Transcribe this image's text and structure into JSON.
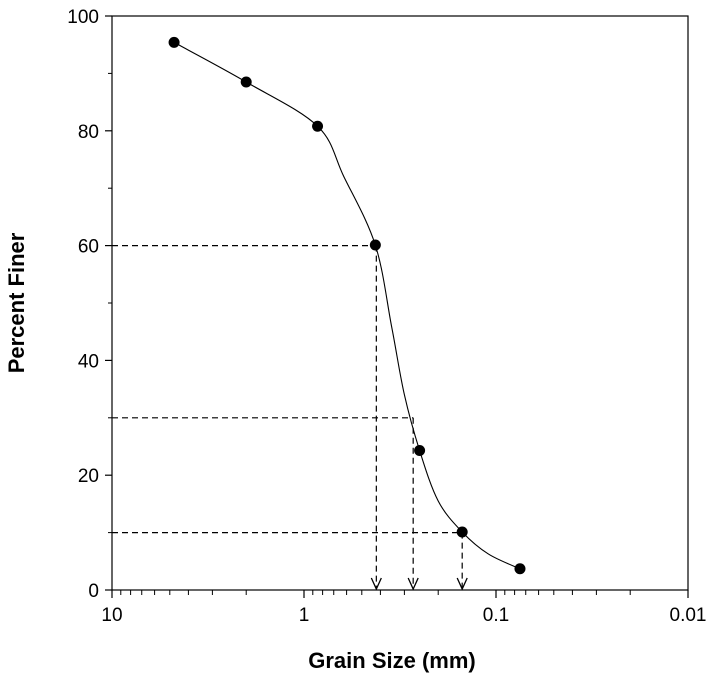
{
  "chart_data": {
    "type": "scatter",
    "title": "",
    "xlabel": "Grain Size (mm)",
    "ylabel": "Percent Finer",
    "x_scale": "log",
    "x_reversed": true,
    "xlim": [
      10,
      0.01
    ],
    "ylim": [
      0,
      100
    ],
    "x_ticks": [
      10,
      1,
      0.1,
      0.01
    ],
    "x_tick_labels": [
      "10",
      "1",
      "0.1",
      "0.01"
    ],
    "y_ticks": [
      0,
      20,
      40,
      60,
      80,
      100
    ],
    "y_tick_labels": [
      "0",
      "20",
      "40",
      "60",
      "80",
      "100"
    ],
    "grid": false,
    "legend": "none",
    "series": [
      {
        "points": [
          {
            "x": 4.75,
            "y": 95.4
          },
          {
            "x": 2.0,
            "y": 88.5
          },
          {
            "x": 0.85,
            "y": 80.8
          },
          {
            "x": 0.425,
            "y": 60.1
          },
          {
            "x": 0.25,
            "y": 24.3
          },
          {
            "x": 0.15,
            "y": 10.1
          },
          {
            "x": 0.075,
            "y": 3.7
          }
        ]
      }
    ],
    "curve": [
      {
        "x": 4.75,
        "y": 95.4
      },
      {
        "x": 2.0,
        "y": 88.5
      },
      {
        "x": 0.85,
        "y": 80.8
      },
      {
        "x": 0.62,
        "y": 72
      },
      {
        "x": 0.425,
        "y": 60.1
      },
      {
        "x": 0.35,
        "y": 46
      },
      {
        "x": 0.3,
        "y": 34
      },
      {
        "x": 0.25,
        "y": 24.3
      },
      {
        "x": 0.2,
        "y": 15.5
      },
      {
        "x": 0.15,
        "y": 10.1
      },
      {
        "x": 0.11,
        "y": 6.3
      },
      {
        "x": 0.075,
        "y": 3.7
      }
    ],
    "annotations": [
      {
        "percent": 60,
        "size": 0.42
      },
      {
        "percent": 30,
        "size": 0.27
      },
      {
        "percent": 10,
        "size": 0.15
      }
    ],
    "colors": {
      "marker": "#000000",
      "line": "#000000",
      "axis": "#000000"
    }
  }
}
